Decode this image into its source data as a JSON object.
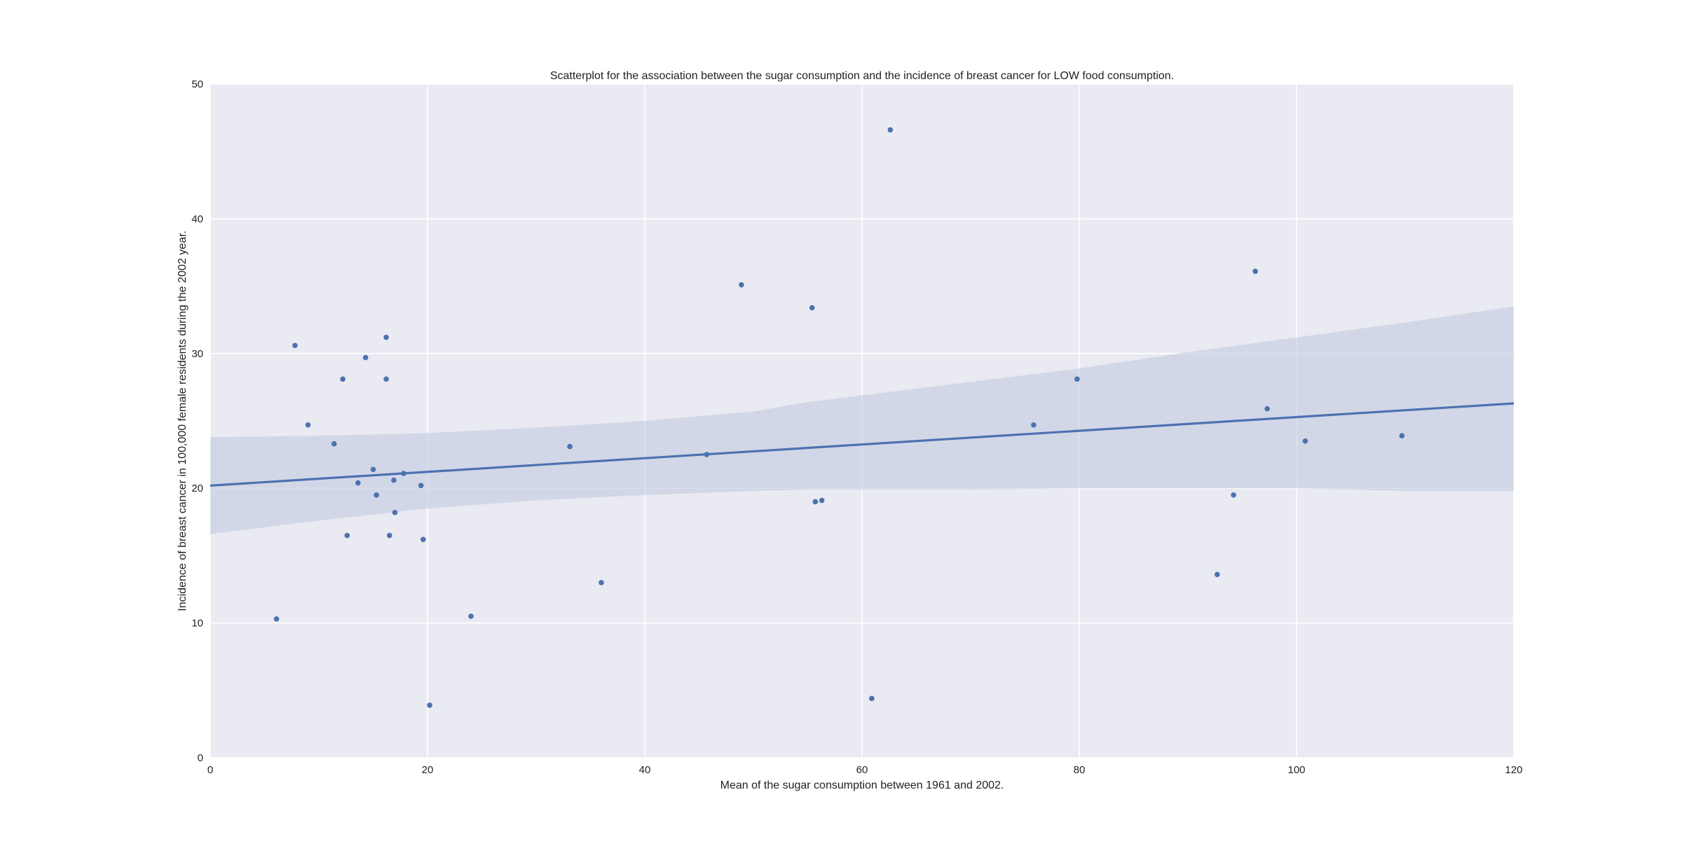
{
  "chart_data": {
    "type": "scatter",
    "title": "Scatterplot for the association between the sugar consumption and the incidence of breast cancer for LOW food consumption.",
    "xlabel": "Mean of the sugar consumption between 1961 and 2002.",
    "ylabel": "Incidence of breast cancer in 100,000 female residents during the 2002 year.",
    "xlim": [
      0,
      120
    ],
    "ylim": [
      0,
      50
    ],
    "xticks": [
      0,
      20,
      40,
      60,
      80,
      100,
      120
    ],
    "yticks": [
      0,
      10,
      20,
      30,
      40,
      50
    ],
    "grid": true,
    "colors": {
      "background": "#eaeaf2",
      "grid": "#ffffff",
      "points": "#4c72b0",
      "line": "#4c72b0",
      "band": "#c2c9e0"
    },
    "points": [
      {
        "x": 6.1,
        "y": 10.3
      },
      {
        "x": 7.8,
        "y": 30.6
      },
      {
        "x": 9.0,
        "y": 24.7
      },
      {
        "x": 11.4,
        "y": 23.3
      },
      {
        "x": 12.2,
        "y": 28.1
      },
      {
        "x": 12.6,
        "y": 16.5
      },
      {
        "x": 13.6,
        "y": 20.4
      },
      {
        "x": 14.3,
        "y": 29.7
      },
      {
        "x": 15.0,
        "y": 21.4
      },
      {
        "x": 15.3,
        "y": 19.5
      },
      {
        "x": 16.2,
        "y": 31.2
      },
      {
        "x": 16.2,
        "y": 28.1
      },
      {
        "x": 16.5,
        "y": 16.5
      },
      {
        "x": 16.9,
        "y": 20.6
      },
      {
        "x": 17.0,
        "y": 18.2
      },
      {
        "x": 17.8,
        "y": 21.1
      },
      {
        "x": 19.4,
        "y": 20.2
      },
      {
        "x": 19.6,
        "y": 16.2
      },
      {
        "x": 20.2,
        "y": 3.9
      },
      {
        "x": 24.0,
        "y": 10.5
      },
      {
        "x": 33.1,
        "y": 23.1
      },
      {
        "x": 36.0,
        "y": 13.0
      },
      {
        "x": 45.7,
        "y": 22.5
      },
      {
        "x": 48.9,
        "y": 35.1
      },
      {
        "x": 55.4,
        "y": 33.4
      },
      {
        "x": 55.7,
        "y": 19.0
      },
      {
        "x": 56.3,
        "y": 19.1
      },
      {
        "x": 60.9,
        "y": 4.4
      },
      {
        "x": 62.6,
        "y": 46.6
      },
      {
        "x": 75.8,
        "y": 24.7
      },
      {
        "x": 79.8,
        "y": 28.1
      },
      {
        "x": 92.7,
        "y": 13.6
      },
      {
        "x": 94.2,
        "y": 19.5
      },
      {
        "x": 96.2,
        "y": 36.1
      },
      {
        "x": 97.3,
        "y": 25.9
      },
      {
        "x": 100.8,
        "y": 23.5
      },
      {
        "x": 109.7,
        "y": 23.9
      }
    ],
    "regression": {
      "x": [
        0,
        120
      ],
      "y": [
        20.2,
        26.3
      ]
    },
    "confidence_band": {
      "x": [
        0,
        10,
        20,
        30,
        40,
        50,
        55,
        60,
        70,
        80,
        90,
        100,
        110,
        120
      ],
      "upper": [
        23.8,
        23.9,
        24.1,
        24.5,
        25.0,
        25.7,
        26.4,
        26.9,
        27.9,
        28.9,
        30.1,
        31.2,
        32.3,
        33.5
      ],
      "lower": [
        16.6,
        17.6,
        18.5,
        19.1,
        19.5,
        19.8,
        19.9,
        19.9,
        19.9,
        20.0,
        20.0,
        20.0,
        19.8,
        19.8
      ]
    }
  }
}
